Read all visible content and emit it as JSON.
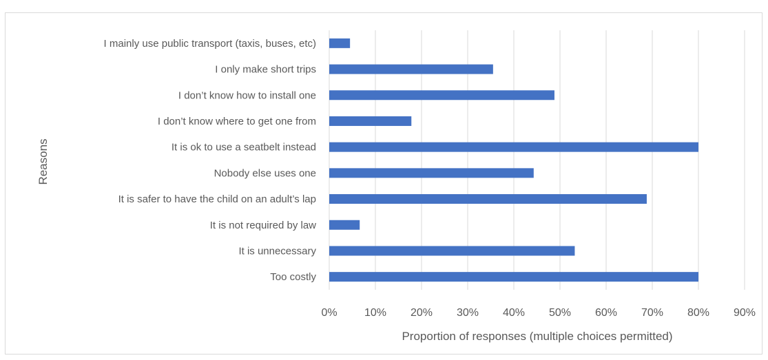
{
  "chart_data": {
    "type": "bar",
    "orientation": "horizontal",
    "title": "",
    "xlabel": "Proportion of responses (multiple choices permitted)",
    "ylabel": "Reasons",
    "xlim": [
      0,
      0.9
    ],
    "x_ticks": [
      "0%",
      "10%",
      "20%",
      "30%",
      "40%",
      "50%",
      "60%",
      "70%",
      "80%",
      "90%"
    ],
    "grid": "vertical",
    "bar_color": "#4472c4",
    "categories": [
      "I mainly use public transport (taxis, buses, etc)",
      "I only make short trips",
      "I don’t know how to install one",
      "I don’t know where to get one from",
      "It is ok to use a seatbelt instead",
      "Nobody else uses one",
      "It is safer to have the child on an adult’s lap",
      "It is not required by law",
      "It is unnecessary",
      "Too costly"
    ],
    "values": [
      0.045,
      0.355,
      0.488,
      0.178,
      0.8,
      0.443,
      0.688,
      0.066,
      0.532,
      0.8
    ]
  }
}
